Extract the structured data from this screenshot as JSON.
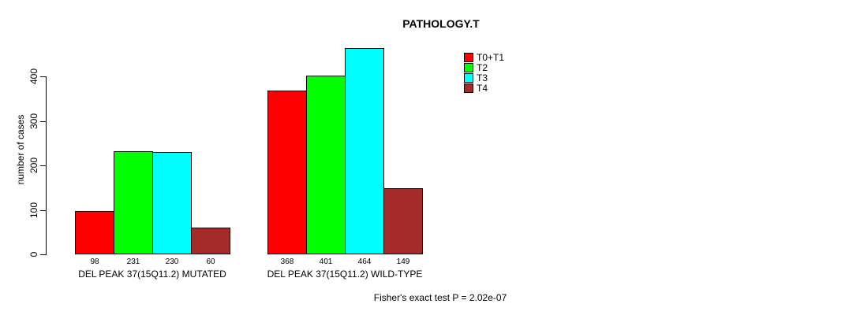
{
  "title": "PATHOLOGY.T",
  "footer": {
    "note": "Fisher's exact test P = 2.02e-07"
  },
  "colors": {
    "background": "#ffffff",
    "axis": "#000000",
    "text": "#000000",
    "series_t0_t1": "#ff0000",
    "series_t2": "#00ff00",
    "series_t3": "#00ffff",
    "series_t4": "#a52a2a"
  },
  "chart_data": {
    "type": "bar",
    "title": "PATHOLOGY.T",
    "xlabel": "",
    "ylabel": "number of cases",
    "categories": [
      "DEL PEAK 37(15Q11.2) MUTATED",
      "DEL PEAK 37(15Q11.2) WILD-TYPE"
    ],
    "series": [
      {
        "name": "T0+T1",
        "color": "#ff0000",
        "values": [
          98,
          368
        ]
      },
      {
        "name": "T2",
        "color": "#00ff00",
        "values": [
          231,
          401
        ]
      },
      {
        "name": "T3",
        "color": "#00ffff",
        "values": [
          230,
          464
        ]
      },
      {
        "name": "T4",
        "color": "#a52a2a",
        "values": [
          60,
          149
        ]
      }
    ],
    "yticks": [
      0,
      100,
      200,
      300,
      400
    ],
    "ylim": [
      0,
      470
    ],
    "grid": false,
    "legend_position": "top-right",
    "bar_value_labels_shown": true,
    "annotation": "Fisher's exact test P = 2.02e-07"
  }
}
